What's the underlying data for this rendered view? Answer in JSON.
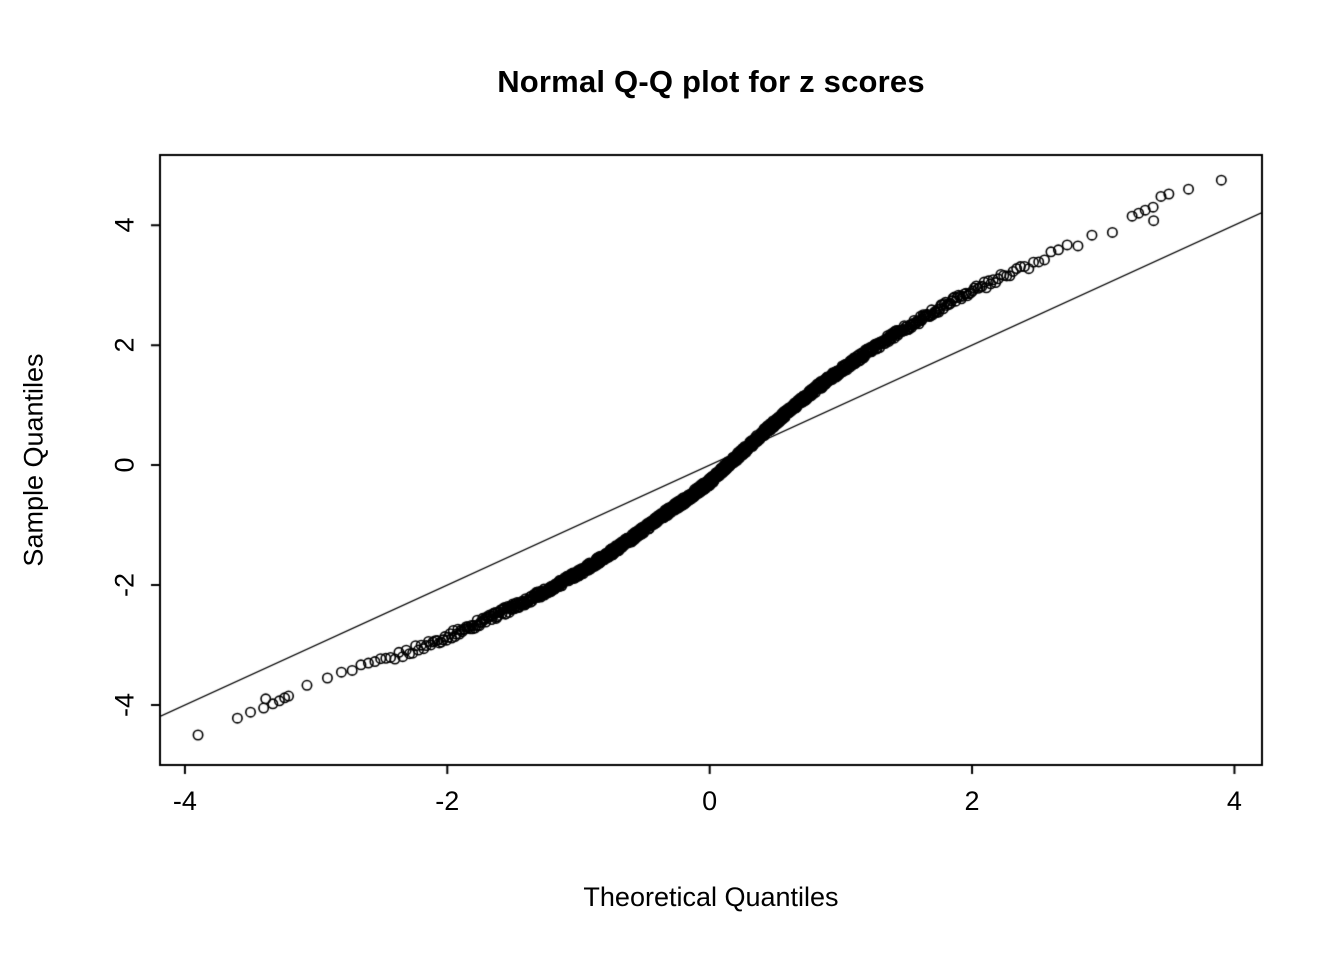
{
  "figure": {
    "title": "Normal Q-Q plot for z scores",
    "xlabel": "Theoretical Quantiles",
    "ylabel": "Sample Quantiles"
  },
  "chart_data": {
    "type": "scatter",
    "subtype": "normal-qq-plot",
    "title": "Normal Q-Q plot for z scores",
    "xlabel": "Theoretical Quantiles",
    "ylabel": "Sample Quantiles",
    "x_ticks": [
      -4,
      -2,
      0,
      2,
      4
    ],
    "y_ticks": [
      -4,
      -2,
      0,
      2,
      4
    ],
    "xlim": [
      -4.19,
      4.21
    ],
    "ylim": [
      -5.0,
      5.17
    ],
    "grid": false,
    "legend": "none",
    "marker": "open-circle",
    "marker_radius_px": 4.7,
    "point_color": "#000000",
    "line_color": "#000000",
    "background": "#ffffff",
    "reference_line": {
      "slope": 1,
      "intercept": 0
    },
    "n_points": 1400,
    "curve_anchors": [
      [
        -3.2,
        -3.85
      ],
      [
        -3.0,
        -3.63
      ],
      [
        -2.8,
        -3.48
      ],
      [
        -2.6,
        -3.35
      ],
      [
        -2.4,
        -3.2
      ],
      [
        -2.2,
        -3.03
      ],
      [
        -2.0,
        -2.86
      ],
      [
        -1.8,
        -2.67
      ],
      [
        -1.6,
        -2.47
      ],
      [
        -1.4,
        -2.27
      ],
      [
        -1.2,
        -2.04
      ],
      [
        -1.0,
        -1.8
      ],
      [
        -0.8,
        -1.53
      ],
      [
        -0.6,
        -1.23
      ],
      [
        -0.4,
        -0.9
      ],
      [
        -0.2,
        -0.6
      ],
      [
        0.0,
        -0.28
      ],
      [
        0.2,
        0.12
      ],
      [
        0.4,
        0.52
      ],
      [
        0.6,
        0.9
      ],
      [
        0.8,
        1.26
      ],
      [
        1.0,
        1.58
      ],
      [
        1.2,
        1.88
      ],
      [
        1.4,
        2.16
      ],
      [
        1.6,
        2.42
      ],
      [
        1.8,
        2.68
      ],
      [
        2.0,
        2.9
      ],
      [
        2.2,
        3.1
      ],
      [
        2.4,
        3.3
      ],
      [
        2.6,
        3.5
      ],
      [
        2.8,
        3.68
      ],
      [
        3.0,
        3.85
      ],
      [
        3.2,
        4.08
      ]
    ],
    "lower_tail_points": [
      [
        -3.9,
        -4.5
      ],
      [
        -3.6,
        -4.22
      ],
      [
        -3.5,
        -4.12
      ],
      [
        -3.4,
        -4.05
      ],
      [
        -3.33,
        -3.98
      ],
      [
        -3.28,
        -3.93
      ],
      [
        -3.24,
        -3.88
      ],
      [
        -3.21,
        -3.85
      ]
    ],
    "upper_tail_points": [
      [
        3.22,
        4.15
      ],
      [
        3.27,
        4.2
      ],
      [
        3.32,
        4.25
      ],
      [
        3.38,
        4.3
      ],
      [
        3.44,
        4.48
      ],
      [
        3.5,
        4.52
      ],
      [
        3.65,
        4.6
      ],
      [
        3.9,
        4.75
      ]
    ]
  }
}
